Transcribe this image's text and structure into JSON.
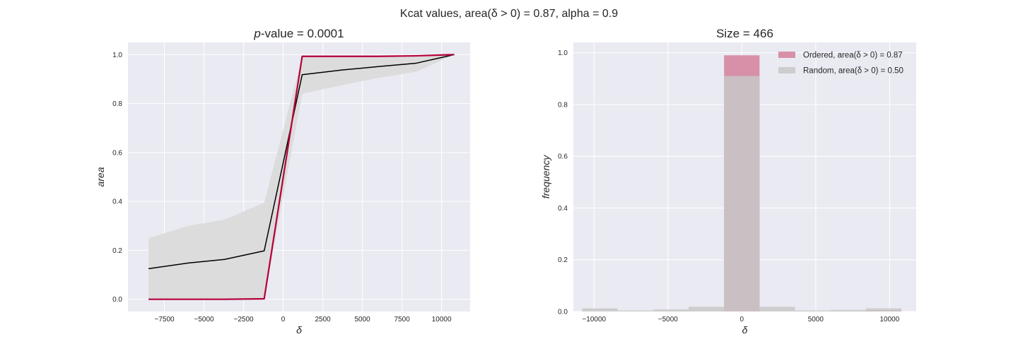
{
  "figure": {
    "suptitle": "Kcat values, area(δ > 0) = 0.87, alpha = 0.9",
    "background": "#ffffff",
    "axes_bg": "#eaeaf2",
    "grid_color": "#ffffff"
  },
  "chart_data": [
    {
      "type": "line",
      "title_italic": "p",
      "title_rest": "-value = 0.0001",
      "xlabel": "δ",
      "ylabel": "area",
      "xlim": [
        -9800,
        11800
      ],
      "ylim": [
        -0.05,
        1.05
      ],
      "xticks": [
        -7500,
        -5000,
        -2500,
        0,
        2500,
        5000,
        7500,
        10000
      ],
      "xtick_labels": [
        "−7500",
        "−5000",
        "−2500",
        "0",
        "2500",
        "5000",
        "7500",
        "10000"
      ],
      "yticks": [
        0.0,
        0.2,
        0.4,
        0.6,
        0.8,
        1.0
      ],
      "ytick_labels": [
        "0.0",
        "0.2",
        "0.4",
        "0.6",
        "0.8",
        "1.0"
      ],
      "grid": true,
      "band": {
        "color": "#dcdcdc",
        "x": [
          -8500,
          -6000,
          -3700,
          -1200,
          1200,
          3700,
          6000,
          8400,
          10800
        ],
        "upper": [
          0.25,
          0.3,
          0.325,
          0.395,
          0.99,
          0.99,
          0.99,
          0.99,
          1.0
        ],
        "lower": [
          0.0,
          0.0,
          0.0,
          0.0,
          0.84,
          0.875,
          0.905,
          0.93,
          1.0
        ]
      },
      "series": [
        {
          "color": "#000000",
          "width": 1.5,
          "x": [
            -8500,
            -6000,
            -3700,
            -1200,
            1200,
            3700,
            6000,
            8400,
            10800
          ],
          "y": [
            0.125,
            0.148,
            0.163,
            0.198,
            0.918,
            0.937,
            0.951,
            0.965,
            1.0
          ]
        },
        {
          "color": "#b5003a",
          "width": 2.2,
          "x": [
            -8500,
            -6000,
            -3700,
            -1200,
            1200,
            3700,
            6000,
            8400,
            10800
          ],
          "y": [
            0.0,
            0.0,
            0.0,
            0.002,
            0.993,
            0.993,
            0.993,
            0.995,
            1.0
          ]
        }
      ]
    },
    {
      "type": "bar",
      "title": "Size = 466",
      "xlabel": "δ",
      "ylabel": "frequency",
      "xlim": [
        -11400,
        11800
      ],
      "ylim": [
        0.0,
        1.04
      ],
      "xticks": [
        -10000,
        -5000,
        0,
        5000,
        10000
      ],
      "xtick_labels": [
        "−10000",
        "−5000",
        "0",
        "5000",
        "10000"
      ],
      "yticks": [
        0.0,
        0.2,
        0.4,
        0.6,
        0.8,
        1.0
      ],
      "ytick_labels": [
        "0.0",
        "0.2",
        "0.4",
        "0.6",
        "0.8",
        "1.0"
      ],
      "grid": true,
      "legend_position": "upper right",
      "bin_edges": [
        -10800,
        -8400,
        -6000,
        -3600,
        -1200,
        1200,
        3600,
        6000,
        8400,
        10800
      ],
      "series": [
        {
          "name": "Ordered, area(δ > 0) = 0.87",
          "color": "#d4809a",
          "values": [
            0.0,
            0.0,
            0.0,
            0.0,
            0.99,
            0.0,
            0.0,
            0.0,
            0.005
          ]
        },
        {
          "name": "Random, area(δ > 0) = 0.50",
          "color": "#c8c8c8",
          "values": [
            0.012,
            0.004,
            0.008,
            0.018,
            0.91,
            0.018,
            0.004,
            0.006,
            0.012
          ]
        }
      ]
    }
  ]
}
